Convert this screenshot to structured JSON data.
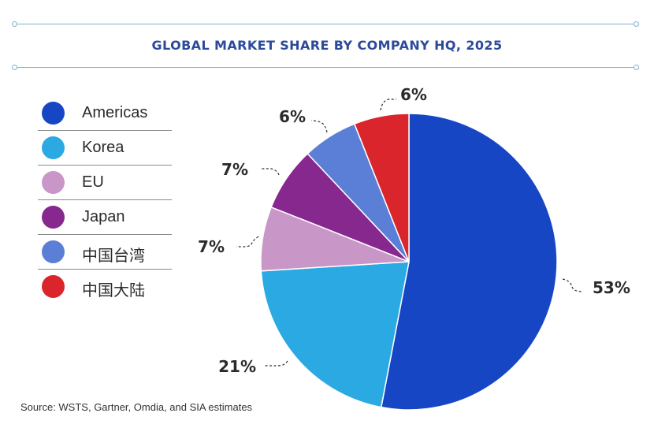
{
  "header": {
    "title": "GLOBAL MARKET SHARE BY COMPANY HQ, 2025"
  },
  "source": "Source: WSTS, Gartner, Omdia, and SIA estimates",
  "chart_data": {
    "type": "pie",
    "title": "GLOBAL MARKET SHARE BY COMPANY HQ, 2025",
    "slices": [
      {
        "name": "Americas",
        "value": 53,
        "label": "53%",
        "color": "#1746c4"
      },
      {
        "name": "Korea",
        "value": 21,
        "label": "21%",
        "color": "#2aa9e3"
      },
      {
        "name": "EU",
        "value": 7,
        "label": "7%",
        "color": "#c996c8"
      },
      {
        "name": "Japan",
        "value": 7,
        "label": "7%",
        "color": "#86288d"
      },
      {
        "name": "中国台湾",
        "value": 6,
        "label": "6%",
        "color": "#5b7fd6"
      },
      {
        "name": "中国大陆",
        "value": 6,
        "label": "6%",
        "color": "#d9252b"
      }
    ],
    "legend_position": "left",
    "start": "12 o'clock, clockwise"
  }
}
